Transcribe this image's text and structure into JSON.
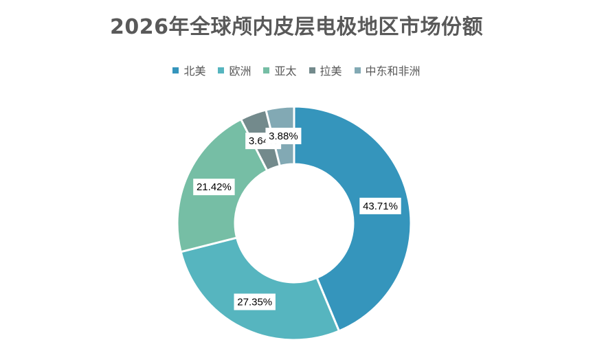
{
  "chart_data": {
    "type": "pie",
    "variant": "doughnut",
    "title": "2026年全球颅内皮层电极地区市场份额",
    "legend_position": "top",
    "categories": [
      "北美",
      "欧洲",
      "亚太",
      "拉美",
      "中东和非洲"
    ],
    "values": [
      43.71,
      27.35,
      21.42,
      3.64,
      3.88
    ],
    "data_labels": [
      "43.71%",
      "27.35%",
      "21.42%",
      "3.64%",
      "3.88%"
    ],
    "colors": [
      "#3595bc",
      "#56b5bf",
      "#76bea5",
      "#738a8c",
      "#82a9b4"
    ]
  }
}
